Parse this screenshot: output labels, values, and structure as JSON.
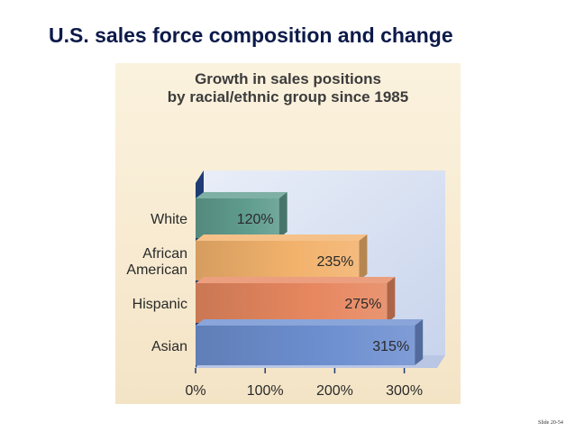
{
  "slide": {
    "title": "U.S. sales force composition and change",
    "footer": "Slide 20-54"
  },
  "chart_data": {
    "type": "bar",
    "orientation": "horizontal",
    "title": [
      "Growth in sales positions",
      "by racial/ethnic group since 1985"
    ],
    "categories": [
      [
        "White"
      ],
      [
        "African",
        "American"
      ],
      [
        "Hispanic"
      ],
      [
        "Asian"
      ]
    ],
    "values": [
      120,
      235,
      275,
      315
    ],
    "data_labels": [
      "120%",
      "235%",
      "275%",
      "315%"
    ],
    "x_ticks": [
      0,
      100,
      200,
      300
    ],
    "x_tick_labels": [
      "0%",
      "100%",
      "200%",
      "300%"
    ],
    "xlim": [
      0,
      325
    ],
    "colors": [
      "#5f9c8e",
      "#f2b26c",
      "#e6875f",
      "#6d8fd0"
    ],
    "panel_color": "#c8d4ec",
    "axis_color": "#1f3b74"
  }
}
